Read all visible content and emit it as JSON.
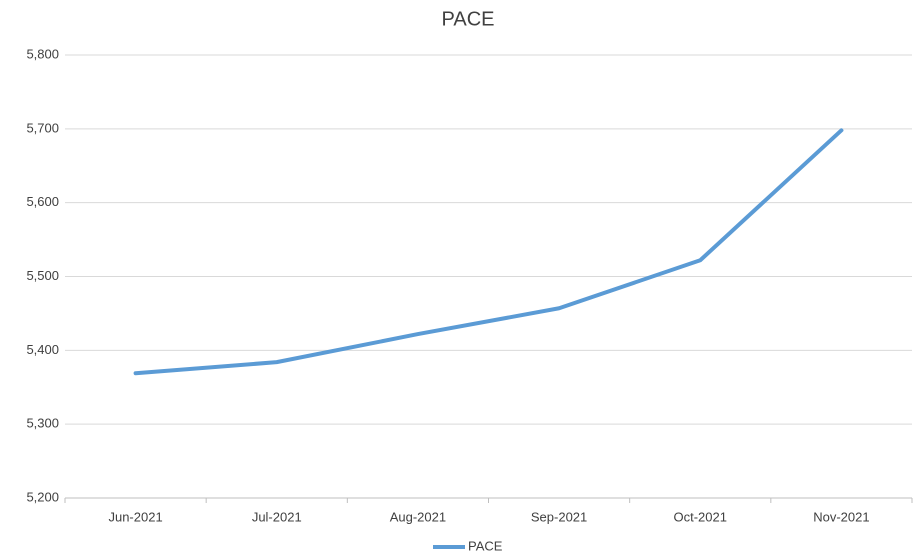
{
  "chart_data": {
    "type": "line",
    "title": "PACE",
    "categories": [
      "Jun-2021",
      "Jul-2021",
      "Aug-2021",
      "Sep-2021",
      "Oct-2021",
      "Nov-2021"
    ],
    "series": [
      {
        "name": "PACE",
        "color": "#5b9bd5",
        "values": [
          5369,
          5384,
          5422,
          5457,
          5522,
          5698
        ]
      }
    ],
    "ylim": [
      5200,
      5800
    ],
    "yticks": [
      {
        "value": 5200,
        "label": "5,200"
      },
      {
        "value": 5300,
        "label": "5,300"
      },
      {
        "value": 5400,
        "label": "5,400"
      },
      {
        "value": 5500,
        "label": "5,500"
      },
      {
        "value": 5600,
        "label": "5,600"
      },
      {
        "value": 5700,
        "label": "5,700"
      },
      {
        "value": 5800,
        "label": "5,800"
      }
    ],
    "grid": true,
    "legend": "bottom"
  }
}
